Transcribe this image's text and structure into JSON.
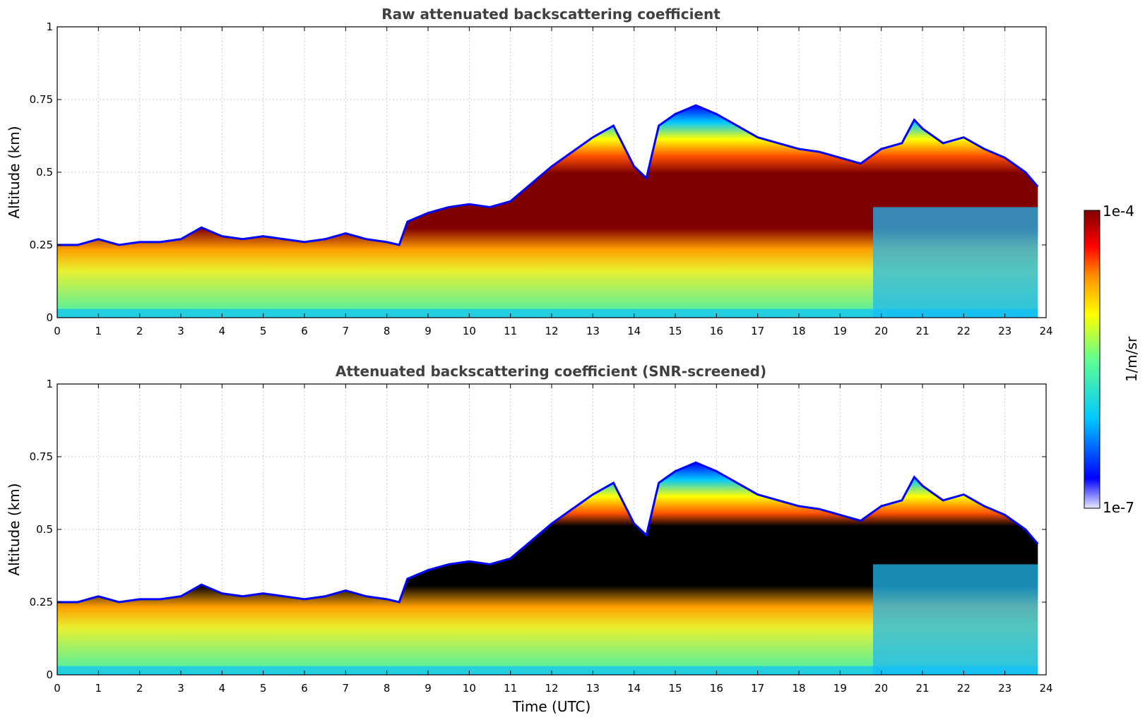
{
  "chart_data": [
    {
      "type": "heatmap",
      "id": "raw",
      "title": "Raw attenuated backscattering coefficient",
      "xlabel": "",
      "ylabel": "Altitude (km)",
      "xlim": [
        0,
        24
      ],
      "ylim": [
        0,
        1
      ],
      "xticks": [
        0,
        1,
        2,
        3,
        4,
        5,
        6,
        7,
        8,
        9,
        10,
        11,
        12,
        13,
        14,
        15,
        16,
        17,
        18,
        19,
        20,
        21,
        22,
        23,
        24
      ],
      "yticks": [
        0,
        0.25,
        0.5,
        0.75,
        1
      ],
      "ytick_labels": [
        "0",
        "0.25",
        "0.5",
        "0.75",
        "1"
      ],
      "grid": true,
      "saturated_color": "#800000",
      "layer_top_km": {
        "time_utc": [
          0,
          0.5,
          1,
          1.5,
          2,
          2.5,
          3,
          3.5,
          4,
          4.5,
          5,
          5.5,
          6,
          6.5,
          7,
          7.5,
          8,
          8.3,
          8.5,
          9,
          9.5,
          10,
          10.5,
          11,
          11.5,
          12,
          12.5,
          13,
          13.5,
          14,
          14.3,
          14.6,
          15,
          15.5,
          16,
          16.5,
          17,
          17.5,
          18,
          18.5,
          19,
          19.5,
          20,
          20.5,
          20.8,
          21,
          21.5,
          22,
          22.5,
          23,
          23.5,
          23.8
        ],
        "values": [
          0.25,
          0.25,
          0.27,
          0.25,
          0.26,
          0.26,
          0.27,
          0.31,
          0.28,
          0.27,
          0.28,
          0.27,
          0.26,
          0.27,
          0.29,
          0.27,
          0.26,
          0.25,
          0.33,
          0.36,
          0.38,
          0.39,
          0.38,
          0.4,
          0.46,
          0.52,
          0.57,
          0.62,
          0.66,
          0.52,
          0.48,
          0.66,
          0.7,
          0.73,
          0.7,
          0.66,
          0.62,
          0.6,
          0.58,
          0.57,
          0.55,
          0.53,
          0.58,
          0.6,
          0.68,
          0.65,
          0.6,
          0.62,
          0.58,
          0.55,
          0.5,
          0.45
        ]
      }
    },
    {
      "type": "heatmap",
      "id": "screened",
      "title": "Attenuated backscattering coefficient (SNR-screened)",
      "xlabel": "Time (UTC)",
      "ylabel": "Altitude (km)",
      "xlim": [
        0,
        24
      ],
      "ylim": [
        0,
        1
      ],
      "xticks": [
        0,
        1,
        2,
        3,
        4,
        5,
        6,
        7,
        8,
        9,
        10,
        11,
        12,
        13,
        14,
        15,
        16,
        17,
        18,
        19,
        20,
        21,
        22,
        23,
        24
      ],
      "yticks": [
        0,
        0.25,
        0.5,
        0.75,
        1
      ],
      "ytick_labels": [
        "0",
        "0.25",
        "0.5",
        "0.75",
        "1"
      ],
      "grid": true,
      "saturated_color": "#000000",
      "layer_top_km": {
        "time_utc": [
          0,
          0.5,
          1,
          1.5,
          2,
          2.5,
          3,
          3.5,
          4,
          4.5,
          5,
          5.5,
          6,
          6.5,
          7,
          7.5,
          8,
          8.3,
          8.5,
          9,
          9.5,
          10,
          10.5,
          11,
          11.5,
          12,
          12.5,
          13,
          13.5,
          14,
          14.3,
          14.6,
          15,
          15.5,
          16,
          16.5,
          17,
          17.5,
          18,
          18.5,
          19,
          19.5,
          20,
          20.5,
          20.8,
          21,
          21.5,
          22,
          22.5,
          23,
          23.5,
          23.8
        ],
        "values": [
          0.25,
          0.25,
          0.27,
          0.25,
          0.26,
          0.26,
          0.27,
          0.31,
          0.28,
          0.27,
          0.28,
          0.27,
          0.26,
          0.27,
          0.29,
          0.27,
          0.26,
          0.25,
          0.33,
          0.36,
          0.38,
          0.39,
          0.38,
          0.4,
          0.46,
          0.52,
          0.57,
          0.62,
          0.66,
          0.52,
          0.48,
          0.66,
          0.7,
          0.73,
          0.7,
          0.66,
          0.62,
          0.6,
          0.58,
          0.57,
          0.55,
          0.53,
          0.58,
          0.6,
          0.68,
          0.65,
          0.6,
          0.62,
          0.58,
          0.55,
          0.5,
          0.45
        ]
      }
    }
  ],
  "colorbar": {
    "label": "1/m/sr",
    "max_label": "1e-4",
    "min_label": "1e-7",
    "scale": "log",
    "range": [
      1e-07,
      0.0001
    ],
    "colors": [
      "#e8e8ff",
      "#0000ff",
      "#00c8ff",
      "#60ff90",
      "#ffff00",
      "#ff9000",
      "#ff0000",
      "#800000"
    ]
  }
}
